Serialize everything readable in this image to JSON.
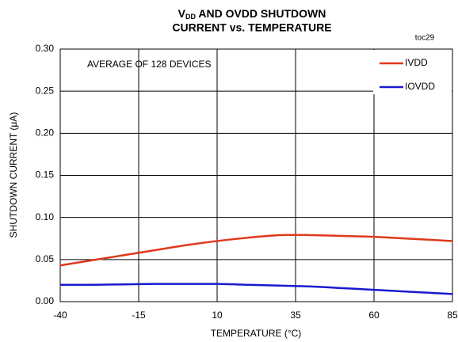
{
  "chart_data": {
    "type": "line",
    "title": {
      "line1": {
        "base": "V",
        "subscript": "DD",
        "rest": " AND OVDD SHUTDOWN"
      },
      "line2": "CURRENT vs. TEMPERATURE"
    },
    "code": "toc29",
    "annotation": "AVERAGE OF 128 DEVICES",
    "xlabel": "TEMPERATURE (°C)",
    "ylabel": "SHUTDOWN CURRENT (μA)",
    "x": [
      -40,
      -30,
      -20,
      -10,
      0,
      10,
      20,
      30,
      40,
      50,
      60,
      70,
      85
    ],
    "series": [
      {
        "name": "IVDD",
        "color": "#e0381c",
        "values": [
          0.043,
          0.049,
          0.055,
          0.061,
          0.067,
          0.072,
          0.076,
          0.079,
          0.079,
          0.078,
          0.077,
          0.075,
          0.072
        ]
      },
      {
        "name": "IOVDD",
        "color": "#1a1ad0",
        "values": [
          0.02,
          0.02,
          0.0205,
          0.021,
          0.021,
          0.021,
          0.02,
          0.019,
          0.018,
          0.016,
          0.014,
          0.012,
          0.009
        ]
      }
    ],
    "xlim": [
      -40,
      85
    ],
    "xticks": [
      -40,
      -15,
      10,
      35,
      60,
      85
    ],
    "ylim": [
      0,
      0.3
    ],
    "yticks": [
      {
        "value": 0,
        "label": "0.00"
      },
      {
        "value": 0.05,
        "label": "0.05"
      },
      {
        "value": 0.1,
        "label": "0.10"
      },
      {
        "value": 0.15,
        "label": "0.15"
      },
      {
        "value": 0.2,
        "label": "0.20"
      },
      {
        "value": 0.25,
        "label": "0.25"
      },
      {
        "value": 0.3,
        "label": "0.30"
      }
    ],
    "grid": true,
    "legend": "upper right"
  }
}
